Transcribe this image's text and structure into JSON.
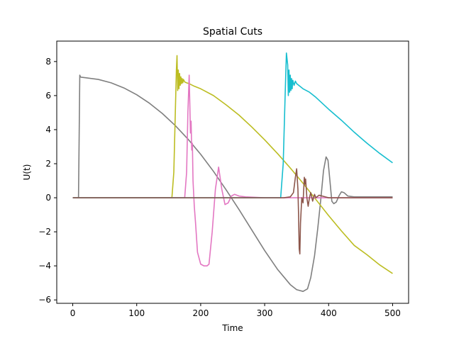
{
  "chart_data": {
    "type": "line",
    "title": "Spatial Cuts",
    "xlabel": "Time",
    "ylabel": "U(t)",
    "xlim": [
      -25,
      525
    ],
    "ylim": [
      -6.2,
      9.2
    ],
    "xticks": [
      0,
      100,
      200,
      300,
      400,
      500
    ],
    "yticks": [
      -6,
      -4,
      -2,
      0,
      2,
      4,
      6,
      8
    ],
    "grid": false,
    "legend": "none",
    "series": [
      {
        "color": "#7f7f7f",
        "x": [
          0,
          9,
          10,
          11,
          12,
          13,
          20,
          40,
          60,
          80,
          100,
          120,
          140,
          160,
          180,
          200,
          220,
          240,
          260,
          280,
          300,
          320,
          340,
          350,
          360,
          367,
          372,
          378,
          383,
          388,
          392,
          396,
          399,
          402,
          405,
          408,
          412,
          416,
          420,
          424,
          430,
          440,
          460,
          480,
          500
        ],
        "y": [
          0,
          0,
          3.5,
          7.2,
          7.1,
          7.08,
          7.05,
          6.95,
          6.75,
          6.45,
          6.05,
          5.55,
          4.95,
          4.25,
          3.45,
          2.55,
          1.55,
          0.45,
          -0.7,
          -1.9,
          -3.1,
          -4.2,
          -5.1,
          -5.4,
          -5.5,
          -5.35,
          -4.7,
          -3.4,
          -1.8,
          0,
          1.6,
          2.4,
          2.2,
          1.0,
          -0.2,
          -0.35,
          -0.25,
          0.1,
          0.35,
          0.3,
          0.1,
          0.05,
          0.05,
          0.05,
          0.05
        ]
      },
      {
        "color": "#bcbd22",
        "x": [
          0,
          155,
          158,
          160,
          162,
          163,
          164,
          165,
          166,
          167,
          168,
          169,
          170,
          171,
          172,
          173,
          175,
          178,
          182,
          190,
          200,
          220,
          240,
          260,
          280,
          300,
          320,
          340,
          360,
          380,
          400,
          420,
          440,
          460,
          480,
          500
        ],
        "y": [
          0,
          0,
          1.5,
          4.5,
          7.5,
          8.35,
          6.3,
          7.5,
          6.4,
          7.3,
          6.6,
          7.1,
          6.7,
          7.0,
          6.75,
          6.95,
          6.8,
          6.75,
          6.7,
          6.55,
          6.4,
          6.0,
          5.45,
          4.85,
          4.15,
          3.4,
          2.6,
          1.75,
          0.85,
          -0.1,
          -1.05,
          -1.95,
          -2.8,
          -3.35,
          -3.95,
          -4.45
        ]
      },
      {
        "color": "#e377c2",
        "x": [
          0,
          175,
          178,
          180,
          182,
          183,
          184,
          185,
          186,
          187,
          188,
          190,
          192,
          195,
          200,
          205,
          210,
          213,
          218,
          223,
          228,
          233,
          238,
          243,
          248,
          253,
          260,
          270,
          300,
          500
        ],
        "y": [
          0,
          0,
          1.5,
          5.0,
          7.2,
          5.5,
          3.8,
          4.5,
          2.8,
          3.2,
          1.0,
          -0.5,
          -1.5,
          -3.2,
          -3.9,
          -4.0,
          -4.0,
          -3.9,
          -2.0,
          0.5,
          1.8,
          0.5,
          -0.4,
          -0.3,
          0.1,
          0.2,
          0.1,
          0.05,
          0.0,
          0.0
        ]
      },
      {
        "color": "#17becf",
        "x": [
          0,
          325,
          329,
          332,
          334,
          336,
          337,
          338,
          339,
          340,
          341,
          342,
          343,
          344,
          346,
          348,
          350,
          355,
          360,
          370,
          380,
          400,
          420,
          440,
          460,
          480,
          500
        ],
        "y": [
          0,
          0,
          2.0,
          6.0,
          8.5,
          7.8,
          6.0,
          7.5,
          6.2,
          7.2,
          6.3,
          7.0,
          6.4,
          6.9,
          6.6,
          6.85,
          6.7,
          6.55,
          6.4,
          6.2,
          5.9,
          5.2,
          4.55,
          3.85,
          3.2,
          2.6,
          2.05
        ]
      },
      {
        "color": "#8c564b",
        "x": [
          0,
          330,
          340,
          345,
          348,
          350,
          352,
          353,
          354,
          355,
          356,
          358,
          360,
          362,
          363,
          364,
          366,
          368,
          370,
          372,
          375,
          378,
          380,
          385,
          390,
          395,
          400,
          500
        ],
        "y": [
          0,
          0,
          0.05,
          0.3,
          1.2,
          1.7,
          0.5,
          -1.0,
          -3.0,
          -3.3,
          -1.5,
          0.0,
          -0.3,
          1.2,
          0.8,
          1.1,
          0.0,
          -0.5,
          0.0,
          0.3,
          -0.2,
          0.2,
          0.0,
          0.15,
          0.1,
          0.05,
          0.0,
          0.0
        ]
      }
    ]
  }
}
